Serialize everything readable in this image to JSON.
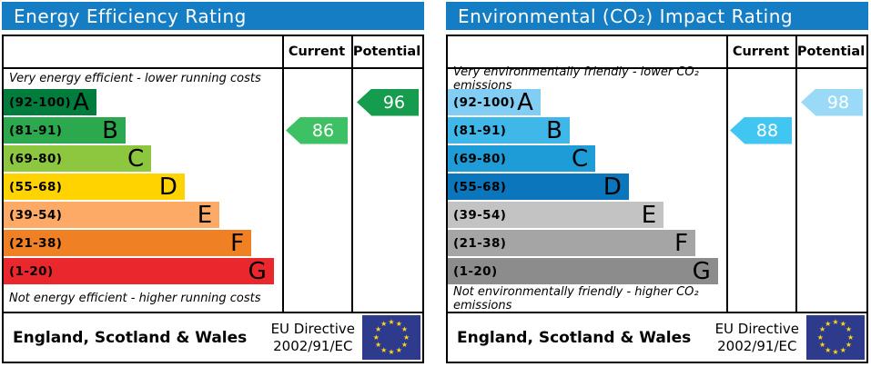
{
  "panels": [
    {
      "title": "Energy Efficiency Rating",
      "header": {
        "current": "Current",
        "potential": "Potential"
      },
      "caption_top": "Very energy efficient - lower running costs",
      "caption_bottom": "Not energy efficient - higher running costs",
      "bands": [
        {
          "range": "(92-100)",
          "letter": "A",
          "color": "#007d3c",
          "width_pct": 33.3
        },
        {
          "range": "(81-91)",
          "letter": "B",
          "color": "#2ca94f",
          "width_pct": 43.8
        },
        {
          "range": "(69-80)",
          "letter": "C",
          "color": "#8dc63f",
          "width_pct": 53
        },
        {
          "range": "(55-68)",
          "letter": "D",
          "color": "#fed300",
          "width_pct": 65
        },
        {
          "range": "(39-54)",
          "letter": "E",
          "color": "#fcaa65",
          "width_pct": 77.5
        },
        {
          "range": "(21-38)",
          "letter": "F",
          "color": "#ef8023",
          "width_pct": 88.9
        },
        {
          "range": "(1-20)",
          "letter": "G",
          "color": "#e9272d",
          "width_pct": 97
        }
      ],
      "current": {
        "value": "86",
        "band_index": 1,
        "color": "#3ec164"
      },
      "potential": {
        "value": "96",
        "band_index": 0,
        "color": "#169c4e"
      },
      "footer": {
        "region": "England, Scotland & Wales",
        "directive1": "EU Directive",
        "directive2": "2002/91/EC"
      }
    },
    {
      "title": "Environmental (CO₂) Impact Rating",
      "header": {
        "current": "Current",
        "potential": "Potential"
      },
      "caption_top": "Very environmentally friendly - lower CO₂ emissions",
      "caption_bottom": "Not environmentally friendly - higher CO₂ emissions",
      "bands": [
        {
          "range": "(92-100)",
          "letter": "A",
          "color": "#82cdf3",
          "width_pct": 33.3
        },
        {
          "range": "(81-91)",
          "letter": "B",
          "color": "#3fb7e9",
          "width_pct": 43.8
        },
        {
          "range": "(69-80)",
          "letter": "C",
          "color": "#1d9cd8",
          "width_pct": 53
        },
        {
          "range": "(55-68)",
          "letter": "D",
          "color": "#0b76bc",
          "width_pct": 65
        },
        {
          "range": "(39-54)",
          "letter": "E",
          "color": "#c3c3c3",
          "width_pct": 77.5
        },
        {
          "range": "(21-38)",
          "letter": "F",
          "color": "#a5a5a5",
          "width_pct": 88.9
        },
        {
          "range": "(1-20)",
          "letter": "G",
          "color": "#8c8c8c",
          "width_pct": 97
        }
      ],
      "current": {
        "value": "88",
        "band_index": 1,
        "color": "#41c6f2"
      },
      "potential": {
        "value": "98",
        "band_index": 0,
        "color": "#9bdaf6"
      },
      "footer": {
        "region": "England, Scotland & Wales",
        "directive1": "EU Directive",
        "directive2": "2002/91/EC"
      }
    }
  ],
  "chart_data": [
    {
      "type": "bar",
      "title": "Energy Efficiency Rating",
      "categories": [
        "A (92-100)",
        "B (81-91)",
        "C (69-80)",
        "D (55-68)",
        "E (39-54)",
        "F (21-38)",
        "G (1-20)"
      ],
      "values": [
        33.3,
        43.8,
        53,
        65,
        77.5,
        88.9,
        97
      ],
      "value_note": "band bar lengths as % of scale width",
      "annotations": {
        "current": 86,
        "potential": 96
      },
      "legend": [
        "Current",
        "Potential"
      ],
      "footnote": "England, Scotland & Wales — EU Directive 2002/91/EC"
    },
    {
      "type": "bar",
      "title": "Environmental (CO₂) Impact Rating",
      "categories": [
        "A (92-100)",
        "B (81-91)",
        "C (69-80)",
        "D (55-68)",
        "E (39-54)",
        "F (21-38)",
        "G (1-20)"
      ],
      "values": [
        33.3,
        43.8,
        53,
        65,
        77.5,
        88.9,
        97
      ],
      "value_note": "band bar lengths as % of scale width",
      "annotations": {
        "current": 88,
        "potential": 98
      },
      "legend": [
        "Current",
        "Potential"
      ],
      "footnote": "England, Scotland & Wales — EU Directive 2002/91/EC"
    }
  ]
}
